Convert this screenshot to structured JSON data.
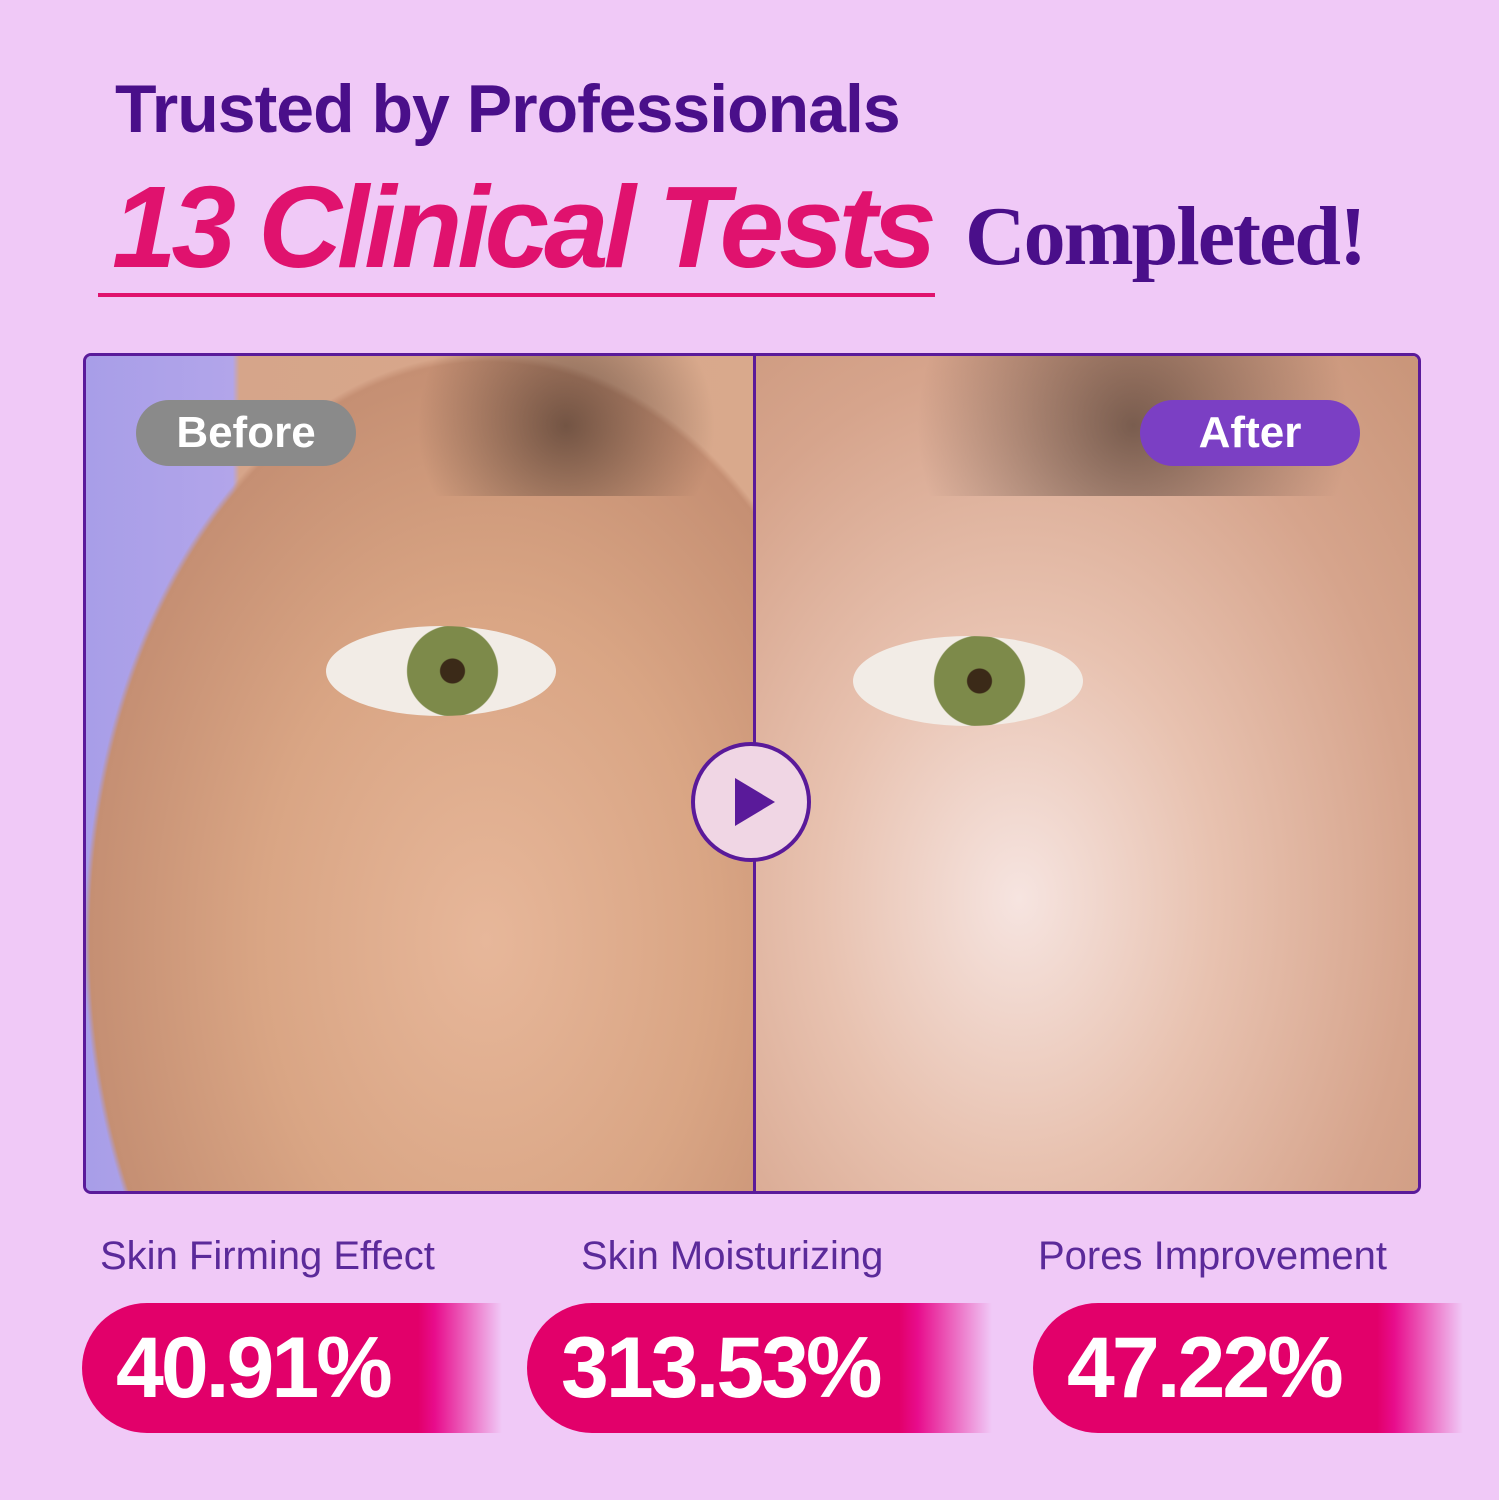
{
  "header": {
    "line1": "Trusted by Professionals",
    "highlight": "13 Clinical Tests",
    "suffix": "Completed!"
  },
  "comparison": {
    "before_label": "Before",
    "after_label": "After",
    "play_icon": "play-icon"
  },
  "stats": [
    {
      "label": "Skin Firming Effect",
      "value": "40.91%"
    },
    {
      "label": "Skin Moisturizing",
      "value": "313.53%"
    },
    {
      "label": "Pores Improvement",
      "value": "47.22%"
    }
  ],
  "colors": {
    "background": "#f0c9f7",
    "primary": "#4a0f8a",
    "accent": "#e0126e"
  }
}
